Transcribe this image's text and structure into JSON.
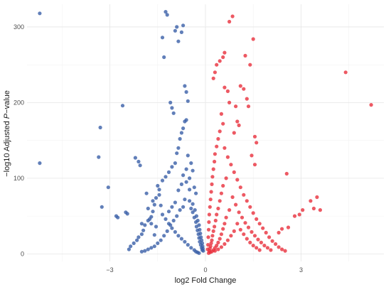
{
  "chart_data": {
    "type": "scatter",
    "title": "",
    "xlabel": "log2 Fold Change",
    "ylabel_prefix": "−log10 Adjusted ",
    "ylabel_italic": "P",
    "ylabel_suffix": "−value",
    "xlim": [
      -5.6,
      5.6
    ],
    "ylim": [
      -10,
      330
    ],
    "x_ticks": [
      -3,
      0,
      3
    ],
    "x_tick_labels": [
      "−3",
      "0",
      "3"
    ],
    "y_ticks": [
      0,
      100,
      200,
      300
    ],
    "y_tick_labels": [
      "0",
      "100",
      "200",
      "300"
    ],
    "grid": true,
    "legend": "none",
    "series": [
      {
        "color": "#3a5fa8",
        "points": [
          [
            -5.2,
            318
          ],
          [
            -5.2,
            120
          ],
          [
            -3.3,
            167
          ],
          [
            -3.35,
            128
          ],
          [
            -3.25,
            62
          ],
          [
            -3.05,
            88
          ],
          [
            -2.8,
            50
          ],
          [
            -2.75,
            48
          ],
          [
            -2.6,
            196
          ],
          [
            -2.5,
            55
          ],
          [
            -2.45,
            53
          ],
          [
            -2.2,
            127
          ],
          [
            -2.1,
            122
          ],
          [
            -2.05,
            117
          ],
          [
            -2.0,
            40
          ],
          [
            -1.85,
            80
          ],
          [
            -1.8,
            60
          ],
          [
            -1.75,
            46
          ],
          [
            -1.7,
            40
          ],
          [
            -1.65,
            70
          ],
          [
            -1.6,
            25
          ],
          [
            -1.55,
            36
          ],
          [
            -1.5,
            90
          ],
          [
            -1.45,
            78
          ],
          [
            -1.4,
            64
          ],
          [
            -1.35,
            286
          ],
          [
            -1.3,
            260
          ],
          [
            -1.25,
            320
          ],
          [
            -1.2,
            316
          ],
          [
            -1.1,
            200
          ],
          [
            -1.05,
            193
          ],
          [
            -1.0,
            186
          ],
          [
            -0.95,
            295
          ],
          [
            -0.9,
            300
          ],
          [
            -0.85,
            281
          ],
          [
            -0.75,
            293
          ],
          [
            -0.7,
            302
          ],
          [
            -0.65,
            222
          ],
          [
            -0.6,
            214
          ],
          [
            -0.55,
            202
          ],
          [
            -0.6,
            177
          ],
          [
            -0.65,
            175
          ],
          [
            -0.7,
            166
          ],
          [
            -0.75,
            160
          ],
          [
            -0.8,
            152
          ],
          [
            -0.85,
            140
          ],
          [
            -0.9,
            133
          ],
          [
            -0.95,
            120
          ],
          [
            -1.05,
            115
          ],
          [
            -1.15,
            108
          ],
          [
            -1.25,
            102
          ],
          [
            -1.35,
            97
          ],
          [
            -1.45,
            85
          ],
          [
            -1.55,
            74
          ],
          [
            -1.6,
            65
          ],
          [
            -1.65,
            56
          ],
          [
            -1.7,
            49
          ],
          [
            -1.8,
            44
          ],
          [
            -1.9,
            38
          ],
          [
            -1.95,
            31
          ],
          [
            -2.0,
            26
          ],
          [
            -2.1,
            22
          ],
          [
            -2.15,
            18
          ],
          [
            -2.25,
            14
          ],
          [
            -2.35,
            10
          ],
          [
            -2.4,
            6
          ],
          [
            -1.35,
            52
          ],
          [
            -1.25,
            46
          ],
          [
            -1.15,
            40
          ],
          [
            -1.05,
            34
          ],
          [
            -0.95,
            29
          ],
          [
            -0.85,
            24
          ],
          [
            -0.75,
            20
          ],
          [
            -0.65,
            16
          ],
          [
            -0.55,
            12
          ],
          [
            -0.45,
            8
          ],
          [
            -0.35,
            5
          ],
          [
            -0.3,
            3
          ],
          [
            -0.25,
            2
          ],
          [
            -0.2,
            1
          ],
          [
            -0.5,
            70
          ],
          [
            -0.45,
            60
          ],
          [
            -0.4,
            55
          ],
          [
            -0.35,
            48
          ],
          [
            -0.3,
            42
          ],
          [
            -0.28,
            36
          ],
          [
            -0.25,
            31
          ],
          [
            -0.22,
            26
          ],
          [
            -0.2,
            21
          ],
          [
            -0.18,
            16
          ],
          [
            -0.15,
            12
          ],
          [
            -0.12,
            8
          ],
          [
            -0.1,
            5
          ],
          [
            -0.6,
            95
          ],
          [
            -0.5,
            100
          ],
          [
            -0.4,
            110
          ],
          [
            -0.45,
            120
          ],
          [
            -0.55,
            130
          ],
          [
            -0.35,
            88
          ],
          [
            -0.3,
            80
          ],
          [
            -0.65,
            72
          ],
          [
            -0.7,
            62
          ],
          [
            -0.8,
            58
          ],
          [
            -0.9,
            50
          ],
          [
            -1.0,
            44
          ],
          [
            -1.1,
            38
          ],
          [
            -1.2,
            30
          ],
          [
            -1.3,
            24
          ],
          [
            -1.4,
            18
          ],
          [
            -1.5,
            14
          ],
          [
            -1.6,
            10
          ],
          [
            -1.7,
            8
          ],
          [
            -1.8,
            6
          ],
          [
            -1.9,
            4
          ],
          [
            -2.0,
            3
          ],
          [
            -0.95,
            68
          ],
          [
            -1.05,
            62
          ],
          [
            -1.15,
            56
          ],
          [
            -0.85,
            84
          ],
          [
            -0.75,
            92
          ],
          [
            -0.7,
            104
          ],
          [
            -0.6,
            112
          ],
          [
            -0.5,
            85
          ],
          [
            -0.4,
            66
          ],
          [
            -0.33,
            58
          ],
          [
            -0.28,
            50
          ],
          [
            -0.24,
            44
          ],
          [
            -0.2,
            38
          ],
          [
            -0.18,
            32
          ],
          [
            -0.16,
            27
          ],
          [
            -0.14,
            22
          ],
          [
            -0.12,
            18
          ],
          [
            -0.1,
            14
          ],
          [
            -0.09,
            10
          ],
          [
            -0.08,
            7
          ],
          [
            -0.07,
            4
          ]
        ]
      },
      {
        "color": "#e8303c",
        "points": [
          [
            0.85,
            314
          ],
          [
            0.75,
            307
          ],
          [
            1.5,
            284
          ],
          [
            1.4,
            250
          ],
          [
            1.25,
            262
          ],
          [
            0.6,
            266
          ],
          [
            0.55,
            260
          ],
          [
            0.45,
            255
          ],
          [
            0.35,
            250
          ],
          [
            0.3,
            240
          ],
          [
            0.25,
            232
          ],
          [
            0.6,
            220
          ],
          [
            0.7,
            215
          ],
          [
            0.75,
            200
          ],
          [
            1.1,
            222
          ],
          [
            1.2,
            218
          ],
          [
            1.3,
            205
          ],
          [
            1.35,
            195
          ],
          [
            0.95,
            195
          ],
          [
            1.0,
            175
          ],
          [
            1.05,
            170
          ],
          [
            0.9,
            160
          ],
          [
            1.55,
            155
          ],
          [
            1.6,
            147
          ],
          [
            1.45,
            130
          ],
          [
            1.55,
            118
          ],
          [
            2.55,
            106
          ],
          [
            3.5,
            75
          ],
          [
            3.3,
            70
          ],
          [
            3.4,
            60
          ],
          [
            3.6,
            58
          ],
          [
            3.05,
            58
          ],
          [
            2.95,
            52
          ],
          [
            2.8,
            50
          ],
          [
            2.6,
            35
          ],
          [
            2.4,
            33
          ],
          [
            2.3,
            28
          ],
          [
            4.4,
            240
          ],
          [
            5.2,
            197
          ],
          [
            0.5,
            185
          ],
          [
            0.55,
            172
          ],
          [
            0.45,
            162
          ],
          [
            0.4,
            152
          ],
          [
            0.35,
            142
          ],
          [
            0.3,
            132
          ],
          [
            0.28,
            122
          ],
          [
            0.25,
            112
          ],
          [
            0.22,
            102
          ],
          [
            0.2,
            92
          ],
          [
            0.18,
            82
          ],
          [
            0.16,
            72
          ],
          [
            0.14,
            62
          ],
          [
            0.12,
            52
          ],
          [
            0.11,
            42
          ],
          [
            0.1,
            32
          ],
          [
            0.09,
            22
          ],
          [
            0.08,
            12
          ],
          [
            0.07,
            6
          ],
          [
            0.6,
            140
          ],
          [
            0.7,
            128
          ],
          [
            0.8,
            118
          ],
          [
            0.9,
            108
          ],
          [
            1.0,
            98
          ],
          [
            1.1,
            88
          ],
          [
            1.2,
            78
          ],
          [
            1.3,
            70
          ],
          [
            1.4,
            62
          ],
          [
            1.5,
            54
          ],
          [
            1.6,
            46
          ],
          [
            1.7,
            40
          ],
          [
            1.8,
            34
          ],
          [
            1.9,
            28
          ],
          [
            2.0,
            22
          ],
          [
            2.1,
            17
          ],
          [
            2.2,
            13
          ],
          [
            2.3,
            9
          ],
          [
            2.4,
            6
          ],
          [
            2.5,
            4
          ],
          [
            0.65,
            100
          ],
          [
            0.55,
            90
          ],
          [
            0.5,
            80
          ],
          [
            0.45,
            70
          ],
          [
            0.4,
            60
          ],
          [
            0.35,
            52
          ],
          [
            0.32,
            44
          ],
          [
            0.28,
            36
          ],
          [
            0.25,
            30
          ],
          [
            0.22,
            24
          ],
          [
            0.2,
            18
          ],
          [
            0.18,
            14
          ],
          [
            0.16,
            10
          ],
          [
            0.14,
            7
          ],
          [
            0.12,
            4
          ],
          [
            0.85,
            75
          ],
          [
            0.95,
            65
          ],
          [
            1.05,
            55
          ],
          [
            1.15,
            48
          ],
          [
            1.25,
            41
          ],
          [
            1.35,
            35
          ],
          [
            1.45,
            29
          ],
          [
            1.55,
            24
          ],
          [
            1.65,
            19
          ],
          [
            1.75,
            15
          ],
          [
            1.85,
            11
          ],
          [
            1.95,
            8
          ],
          [
            2.05,
            5
          ],
          [
            0.75,
            58
          ],
          [
            0.65,
            48
          ],
          [
            0.6,
            40
          ],
          [
            0.55,
            33
          ],
          [
            0.5,
            26
          ],
          [
            0.45,
            20
          ],
          [
            0.4,
            15
          ],
          [
            0.35,
            11
          ],
          [
            0.3,
            8
          ],
          [
            0.25,
            5
          ],
          [
            0.2,
            3
          ],
          [
            1.0,
            40
          ],
          [
            1.1,
            32
          ],
          [
            1.2,
            26
          ],
          [
            1.3,
            20
          ],
          [
            1.4,
            15
          ],
          [
            1.5,
            11
          ],
          [
            1.6,
            8
          ],
          [
            1.7,
            5
          ],
          [
            0.9,
            30
          ],
          [
            0.8,
            24
          ],
          [
            0.7,
            18
          ],
          [
            0.6,
            13
          ],
          [
            0.5,
            9
          ],
          [
            0.4,
            6
          ],
          [
            0.3,
            4
          ],
          [
            0.15,
            2
          ],
          [
            0.1,
            1
          ]
        ]
      }
    ]
  }
}
